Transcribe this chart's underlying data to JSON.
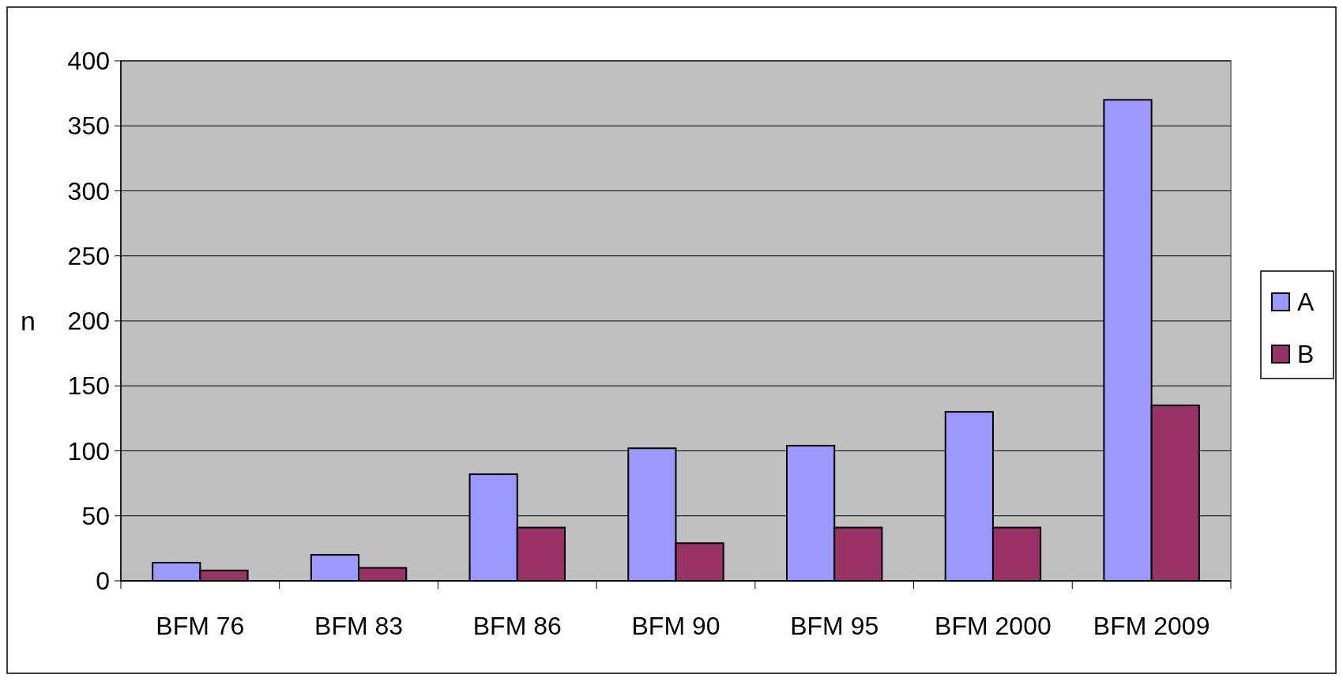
{
  "chart_data": {
    "type": "bar",
    "ylabel": "n",
    "categories": [
      "BFM 76",
      "BFM 83",
      "BFM 86",
      "BFM 90",
      "BFM 95",
      "BFM 2000",
      "BFM 2009"
    ],
    "series": [
      {
        "name": "A",
        "color": "#9999ff",
        "values": [
          14,
          20,
          82,
          102,
          104,
          130,
          370
        ]
      },
      {
        "name": "B",
        "color": "#993366",
        "values": [
          8,
          10,
          41,
          29,
          41,
          41,
          135
        ]
      }
    ],
    "ylim": [
      0,
      400
    ],
    "yticks": [
      0,
      50,
      100,
      150,
      200,
      250,
      300,
      350,
      400
    ],
    "grid": "y",
    "legend": "right"
  }
}
